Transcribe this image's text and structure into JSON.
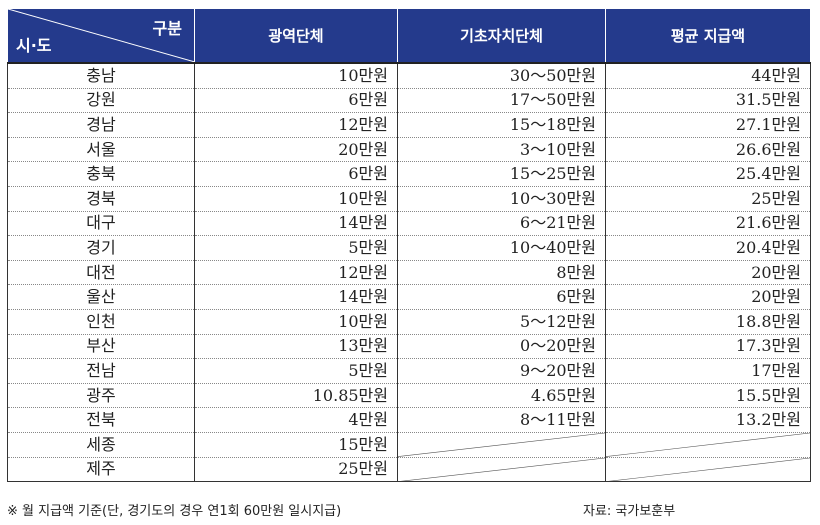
{
  "table": {
    "header": {
      "corner_top": "구분",
      "corner_bottom": "시·도",
      "columns": [
        "광역단체",
        "기초자치단체",
        "평균 지급액"
      ]
    },
    "rows": [
      {
        "region": "충남",
        "metro": "10만원",
        "local": "30～50만원",
        "average": "44만원"
      },
      {
        "region": "강원",
        "metro": "6만원",
        "local": "17～50만원",
        "average": "31.5만원"
      },
      {
        "region": "경남",
        "metro": "12만원",
        "local": "15～18만원",
        "average": "27.1만원"
      },
      {
        "region": "서울",
        "metro": "20만원",
        "local": "3～10만원",
        "average": "26.6만원"
      },
      {
        "region": "충북",
        "metro": "6만원",
        "local": "15～25만원",
        "average": "25.4만원"
      },
      {
        "region": "경북",
        "metro": "10만원",
        "local": "10～30만원",
        "average": "25만원"
      },
      {
        "region": "대구",
        "metro": "14만원",
        "local": "6～21만원",
        "average": "21.6만원"
      },
      {
        "region": "경기",
        "metro": "5만원",
        "local": "10～40만원",
        "average": "20.4만원"
      },
      {
        "region": "대전",
        "metro": "12만원",
        "local": "8만원",
        "average": "20만원"
      },
      {
        "region": "울산",
        "metro": "14만원",
        "local": "6만원",
        "average": "20만원"
      },
      {
        "region": "인천",
        "metro": "10만원",
        "local": "5～12만원",
        "average": "18.8만원"
      },
      {
        "region": "부산",
        "metro": "13만원",
        "local": "0～20만원",
        "average": "17.3만원"
      },
      {
        "region": "전남",
        "metro": "5만원",
        "local": "9～20만원",
        "average": "17만원"
      },
      {
        "region": "광주",
        "metro": "10.85만원",
        "local": "4.65만원",
        "average": "15.5만원"
      },
      {
        "region": "전북",
        "metro": "4만원",
        "local": "8～11만원",
        "average": "13.2만원"
      },
      {
        "region": "세종",
        "metro": "15만원",
        "local": null,
        "average": null
      },
      {
        "region": "제주",
        "metro": "25만원",
        "local": null,
        "average": null
      }
    ]
  },
  "footnote": "※ 월 지급액 기준(단, 경기도의 경우 연1회 60만원 일시지급)",
  "source": "자료: 국가보훈부",
  "colors": {
    "header_bg": "#243a8c",
    "header_text": "#ffffff"
  }
}
